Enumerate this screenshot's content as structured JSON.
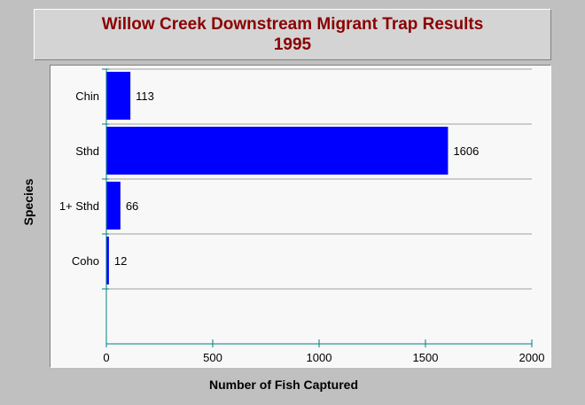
{
  "header": {
    "title_line1": "Willow Creek Downstream Migrant Trap Results",
    "title_line2": "1995"
  },
  "chart_data": {
    "type": "bar",
    "orientation": "horizontal",
    "title": "Willow Creek Downstream Migrant Trap Results 1995",
    "categories": [
      "Chin",
      "Sthd",
      "1+ Sthd",
      "Coho"
    ],
    "values": [
      113,
      1606,
      66,
      12
    ],
    "data_labels": [
      "113",
      "1606",
      "66",
      "12"
    ],
    "xlabel": "Number of Fish Captured",
    "ylabel": "Species",
    "xlim": [
      0,
      2000
    ],
    "x_ticks": [
      "0",
      "500",
      "1000",
      "1500",
      "2000"
    ],
    "grid": true,
    "bar_color": "#0000ff",
    "title_color": "#8b0000"
  }
}
